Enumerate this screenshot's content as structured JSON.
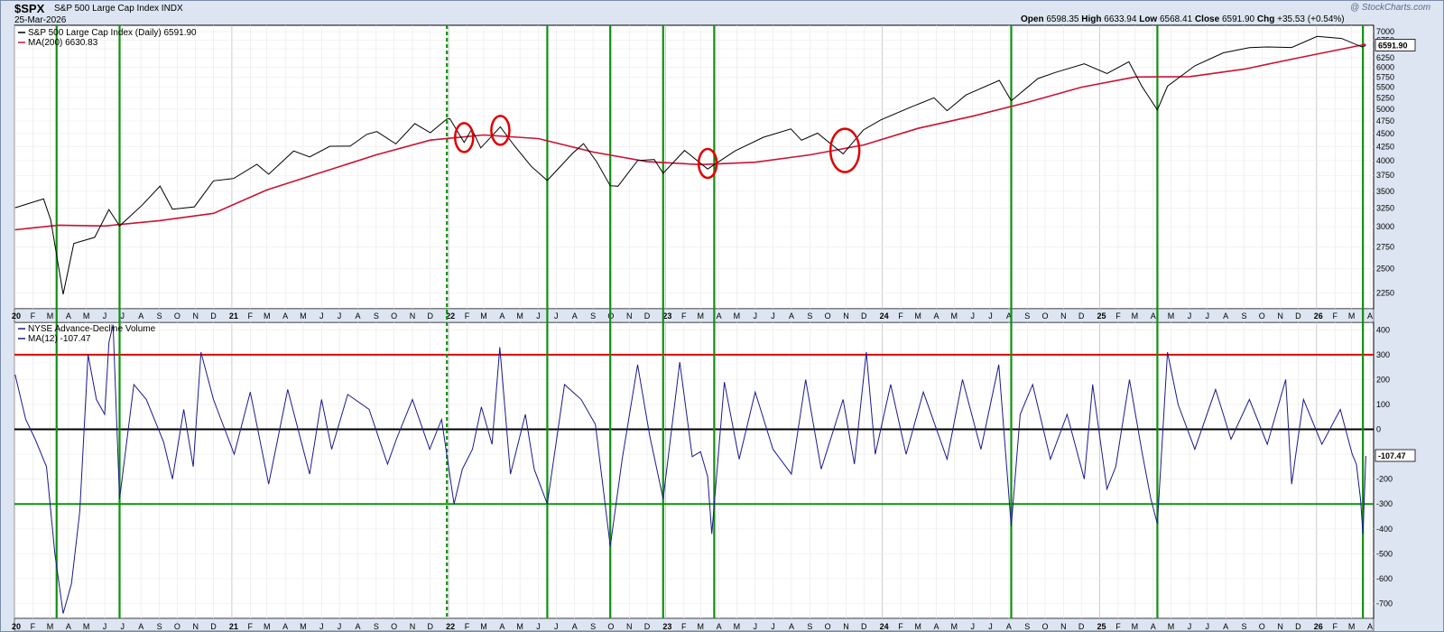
{
  "header": {
    "symbol": "$SPX",
    "name": "S&P 500 Large Cap Index",
    "exchange": "INDX",
    "date": "25-Mar-2026",
    "open_label": "Open",
    "open": "6598.35",
    "high_label": "High",
    "high": "6633.94",
    "low_label": "Low",
    "low": "6568.41",
    "close_label": "Close",
    "close": "6591.90",
    "chg_label": "Chg",
    "chg": "+35.53 (+0.54%)",
    "brand": "@ StockCharts.com"
  },
  "colors": {
    "price": "#000000",
    "ma200": "#cc1133",
    "adv": "#1a1a8c",
    "redline": "#e00000",
    "greenline": "#109010",
    "panel_bg": "#ffffff",
    "page_bg": "#dde5f2"
  },
  "chart_data": [
    {
      "type": "line",
      "title": "S&P 500 Large Cap Index (Daily) 6591.90",
      "legend": [
        {
          "name": "S&P 500 Large Cap Index (Daily)",
          "value": "6591.90",
          "color": "#000000"
        },
        {
          "name": "MA(200)",
          "value": "6630.83",
          "color": "#cc1133"
        }
      ],
      "scale": "log",
      "ylim": [
        2100,
        7200
      ],
      "yticks": [
        7000,
        6750,
        6500,
        6250,
        6000,
        5750,
        5500,
        5250,
        5000,
        4750,
        4500,
        4250,
        4000,
        3750,
        3500,
        3250,
        3000,
        2750,
        2500,
        2250
      ],
      "y_tick_labels": [
        "7000",
        "6750",
        "6500",
        "6250",
        "6000",
        "5750",
        "5500",
        "5250",
        "5000",
        "4750",
        "4500",
        "4250",
        "4000",
        "3750",
        "3500",
        "3250",
        "3000",
        "2750",
        "2500",
        "2250"
      ],
      "last_value_label": "6591.90",
      "series": [
        {
          "name": "S&P 500 Large Cap Index (Daily)",
          "x": [
            "2020-01-02",
            "2020-02-19",
            "2020-03-02",
            "2020-03-23",
            "2020-04-10",
            "2020-05-15",
            "2020-06-08",
            "2020-06-26",
            "2020-08-03",
            "2020-09-02",
            "2020-09-23",
            "2020-10-30",
            "2020-12-01",
            "2021-01-04",
            "2021-02-12",
            "2021-03-04",
            "2021-04-15",
            "2021-05-12",
            "2021-06-15",
            "2021-07-19",
            "2021-08-16",
            "2021-09-02",
            "2021-10-04",
            "2021-11-05",
            "2021-12-01",
            "2021-12-29",
            "2022-01-03",
            "2022-01-27",
            "2022-02-09",
            "2022-02-24",
            "2022-03-29",
            "2022-04-21",
            "2022-05-20",
            "2022-06-16",
            "2022-07-29",
            "2022-08-16",
            "2022-09-07",
            "2022-09-30",
            "2022-10-13",
            "2022-11-15",
            "2022-12-13",
            "2022-12-28",
            "2023-02-02",
            "2023-03-13",
            "2023-04-28",
            "2023-06-15",
            "2023-07-31",
            "2023-08-18",
            "2023-09-14",
            "2023-10-27",
            "2023-11-30",
            "2023-12-29",
            "2024-02-15",
            "2024-03-28",
            "2024-04-19",
            "2024-05-21",
            "2024-07-16",
            "2024-08-05",
            "2024-09-19",
            "2024-10-18",
            "2024-12-06",
            "2025-01-13",
            "2025-02-19",
            "2025-03-13",
            "2025-04-08",
            "2025-04-25",
            "2025-06-10",
            "2025-07-28",
            "2025-09-10",
            "2025-10-10",
            "2025-11-20",
            "2026-01-02",
            "2026-02-12",
            "2026-03-18",
            "2026-03-25"
          ],
          "values": [
            3258,
            3386,
            3090,
            2237,
            2790,
            2864,
            3232,
            3009,
            3295,
            3580,
            3237,
            3270,
            3662,
            3700,
            3934,
            3768,
            4170,
            4063,
            4255,
            4258,
            4480,
            4536,
            4300,
            4697,
            4513,
            4793,
            4796,
            4326,
            4587,
            4225,
            4631,
            4272,
            3901,
            3667,
            4130,
            4305,
            3979,
            3585,
            3577,
            4000,
            4019,
            3783,
            4179,
            3855,
            4169,
            4426,
            4589,
            4369,
            4505,
            4117,
            4568,
            4770,
            5030,
            5254,
            4967,
            5321,
            5667,
            5186,
            5713,
            5864,
            6090,
            5836,
            6144,
            5521,
            4982,
            5525,
            6038,
            6389,
            6532,
            6552,
            6538,
            6860,
            6800,
            6556,
            6592
          ]
        },
        {
          "name": "MA(200)",
          "x": [
            "2020-01-02",
            "2020-03-15",
            "2020-06-01",
            "2020-09-01",
            "2020-12-01",
            "2021-03-01",
            "2021-06-01",
            "2021-09-01",
            "2021-12-01",
            "2022-03-01",
            "2022-06-01",
            "2022-09-01",
            "2022-12-01",
            "2023-03-01",
            "2023-06-01",
            "2023-09-01",
            "2023-12-01",
            "2024-03-01",
            "2024-06-01",
            "2024-09-01",
            "2024-12-01",
            "2025-03-01",
            "2025-06-01",
            "2025-09-01",
            "2025-12-01",
            "2026-03-25"
          ],
          "values": [
            2960,
            3020,
            3010,
            3080,
            3180,
            3520,
            3800,
            4100,
            4370,
            4470,
            4400,
            4150,
            3980,
            3930,
            3970,
            4100,
            4280,
            4600,
            4850,
            5150,
            5500,
            5750,
            5760,
            5950,
            6250,
            6631
          ]
        }
      ],
      "annotations": [
        {
          "shape": "ellipse",
          "x": "2022-01-27",
          "y": 4420,
          "color": "#e00000"
        },
        {
          "shape": "ellipse",
          "x": "2022-03-29",
          "y": 4560,
          "color": "#e00000"
        },
        {
          "shape": "ellipse",
          "x": "2023-03-13",
          "y": 3950,
          "color": "#e00000"
        },
        {
          "shape": "ellipse",
          "x": "2023-10-30",
          "y": 4180,
          "color": "#e00000"
        }
      ]
    },
    {
      "type": "line",
      "title": "NYSE Advance-Decline Volume",
      "legend": [
        {
          "name": "NYSE Advance-Decline Volume",
          "color": "#1a1a8c"
        },
        {
          "name": "MA(12)",
          "value": "-107.47",
          "color": "#1a1a8c"
        }
      ],
      "ylim": [
        -760,
        430
      ],
      "yticks": [
        400,
        300,
        200,
        100,
        0,
        -100,
        -200,
        -300,
        -400,
        -500,
        -600,
        -700
      ],
      "y_tick_labels": [
        "400",
        "300",
        "200",
        "100",
        "0",
        "-100",
        "-200",
        "-300",
        "-400",
        "-500",
        "-600",
        "-700"
      ],
      "last_value_label": "-107.47",
      "reference_lines": [
        {
          "y": 300,
          "color": "#e00000"
        },
        {
          "y": 0,
          "color": "#000000"
        },
        {
          "y": -300,
          "color": "#109010"
        }
      ],
      "series": [
        {
          "name": "MA(12)",
          "x": [
            "2020-01-02",
            "2020-01-20",
            "2020-02-05",
            "2020-02-24",
            "2020-03-09",
            "2020-03-23",
            "2020-04-06",
            "2020-04-20",
            "2020-05-04",
            "2020-05-18",
            "2020-06-01",
            "2020-06-08",
            "2020-06-15",
            "2020-06-26",
            "2020-07-20",
            "2020-08-10",
            "2020-09-08",
            "2020-09-23",
            "2020-10-12",
            "2020-10-28",
            "2020-11-10",
            "2020-12-01",
            "2021-01-05",
            "2021-02-01",
            "2021-03-04",
            "2021-04-05",
            "2021-05-12",
            "2021-06-01",
            "2021-06-18",
            "2021-07-15",
            "2021-08-20",
            "2021-09-20",
            "2021-10-05",
            "2021-11-01",
            "2021-11-30",
            "2021-12-20",
            "2022-01-10",
            "2022-01-24",
            "2022-02-10",
            "2022-02-25",
            "2022-03-15",
            "2022-03-28",
            "2022-04-15",
            "2022-05-10",
            "2022-05-25",
            "2022-06-16",
            "2022-07-15",
            "2022-08-12",
            "2022-09-05",
            "2022-09-30",
            "2022-10-20",
            "2022-11-15",
            "2022-12-05",
            "2022-12-28",
            "2023-01-25",
            "2023-02-15",
            "2023-03-01",
            "2023-03-13",
            "2023-03-20",
            "2023-04-10",
            "2023-05-05",
            "2023-06-01",
            "2023-07-01",
            "2023-08-01",
            "2023-08-25",
            "2023-09-20",
            "2023-10-27",
            "2023-11-15",
            "2023-12-05",
            "2023-12-20",
            "2024-01-15",
            "2024-02-10",
            "2024-03-10",
            "2024-04-19",
            "2024-05-15",
            "2024-06-15",
            "2024-07-15",
            "2024-08-05",
            "2024-08-20",
            "2024-09-10",
            "2024-10-10",
            "2024-11-07",
            "2024-12-06",
            "2024-12-20",
            "2025-01-13",
            "2025-01-28",
            "2025-02-20",
            "2025-03-13",
            "2025-03-28",
            "2025-04-08",
            "2025-04-25",
            "2025-05-13",
            "2025-06-10",
            "2025-07-15",
            "2025-08-10",
            "2025-09-10",
            "2025-10-10",
            "2025-11-10",
            "2025-11-20",
            "2025-12-10",
            "2026-01-10",
            "2026-02-10",
            "2026-03-02",
            "2026-03-09",
            "2026-03-16",
            "2026-03-20",
            "2026-03-25"
          ],
          "values": [
            220,
            40,
            -40,
            -150,
            -500,
            -740,
            -620,
            -330,
            300,
            120,
            60,
            350,
            420,
            -280,
            180,
            120,
            -50,
            -200,
            80,
            -150,
            310,
            120,
            -100,
            150,
            -220,
            160,
            -180,
            120,
            -80,
            140,
            80,
            -140,
            -40,
            120,
            -80,
            40,
            -300,
            -160,
            -80,
            90,
            -60,
            330,
            -180,
            60,
            -160,
            -300,
            180,
            120,
            20,
            -470,
            -120,
            260,
            -20,
            -280,
            270,
            -110,
            -90,
            -190,
            -420,
            190,
            -120,
            150,
            -80,
            -180,
            200,
            -160,
            120,
            -140,
            310,
            -100,
            180,
            -100,
            150,
            -120,
            200,
            -80,
            260,
            -390,
            60,
            180,
            -120,
            60,
            -200,
            180,
            -240,
            -150,
            200,
            -90,
            -280,
            -380,
            310,
            100,
            -80,
            160,
            -40,
            120,
            -60,
            200,
            -220,
            120,
            -60,
            80,
            -100,
            -140,
            -280,
            -420,
            -107
          ]
        }
      ]
    }
  ],
  "vertical_markers": [
    {
      "x": "2020-03-12",
      "style": "solid",
      "color": "#109010"
    },
    {
      "x": "2020-06-26",
      "style": "solid",
      "color": "#109010"
    },
    {
      "x": "2021-12-29",
      "style": "dashed",
      "color": "#109010"
    },
    {
      "x": "2022-06-16",
      "style": "solid",
      "color": "#109010"
    },
    {
      "x": "2022-09-30",
      "style": "solid",
      "color": "#109010"
    },
    {
      "x": "2022-12-28",
      "style": "solid",
      "color": "#109010"
    },
    {
      "x": "2023-03-24",
      "style": "solid",
      "color": "#109010"
    },
    {
      "x": "2024-08-05",
      "style": "solid",
      "color": "#109010"
    },
    {
      "x": "2025-04-08",
      "style": "solid",
      "color": "#109010"
    },
    {
      "x": "2026-03-20",
      "style": "solid",
      "color": "#109010"
    }
  ],
  "x_axis": {
    "months": [
      "F",
      "M",
      "A",
      "M",
      "J",
      "J",
      "A",
      "S",
      "O",
      "N",
      "D"
    ],
    "years": [
      {
        "label": "20",
        "date": "2020-01-01"
      },
      {
        "label": "21",
        "date": "2021-01-01"
      },
      {
        "label": "22",
        "date": "2022-01-01"
      },
      {
        "label": "23",
        "date": "2023-01-01"
      },
      {
        "label": "24",
        "date": "2024-01-01"
      },
      {
        "label": "25",
        "date": "2025-01-01"
      },
      {
        "label": "26",
        "date": "2026-01-01"
      }
    ],
    "extra_months": [
      "F",
      "M",
      "A"
    ],
    "start": "2020-01-01",
    "end": "2026-04-07"
  }
}
